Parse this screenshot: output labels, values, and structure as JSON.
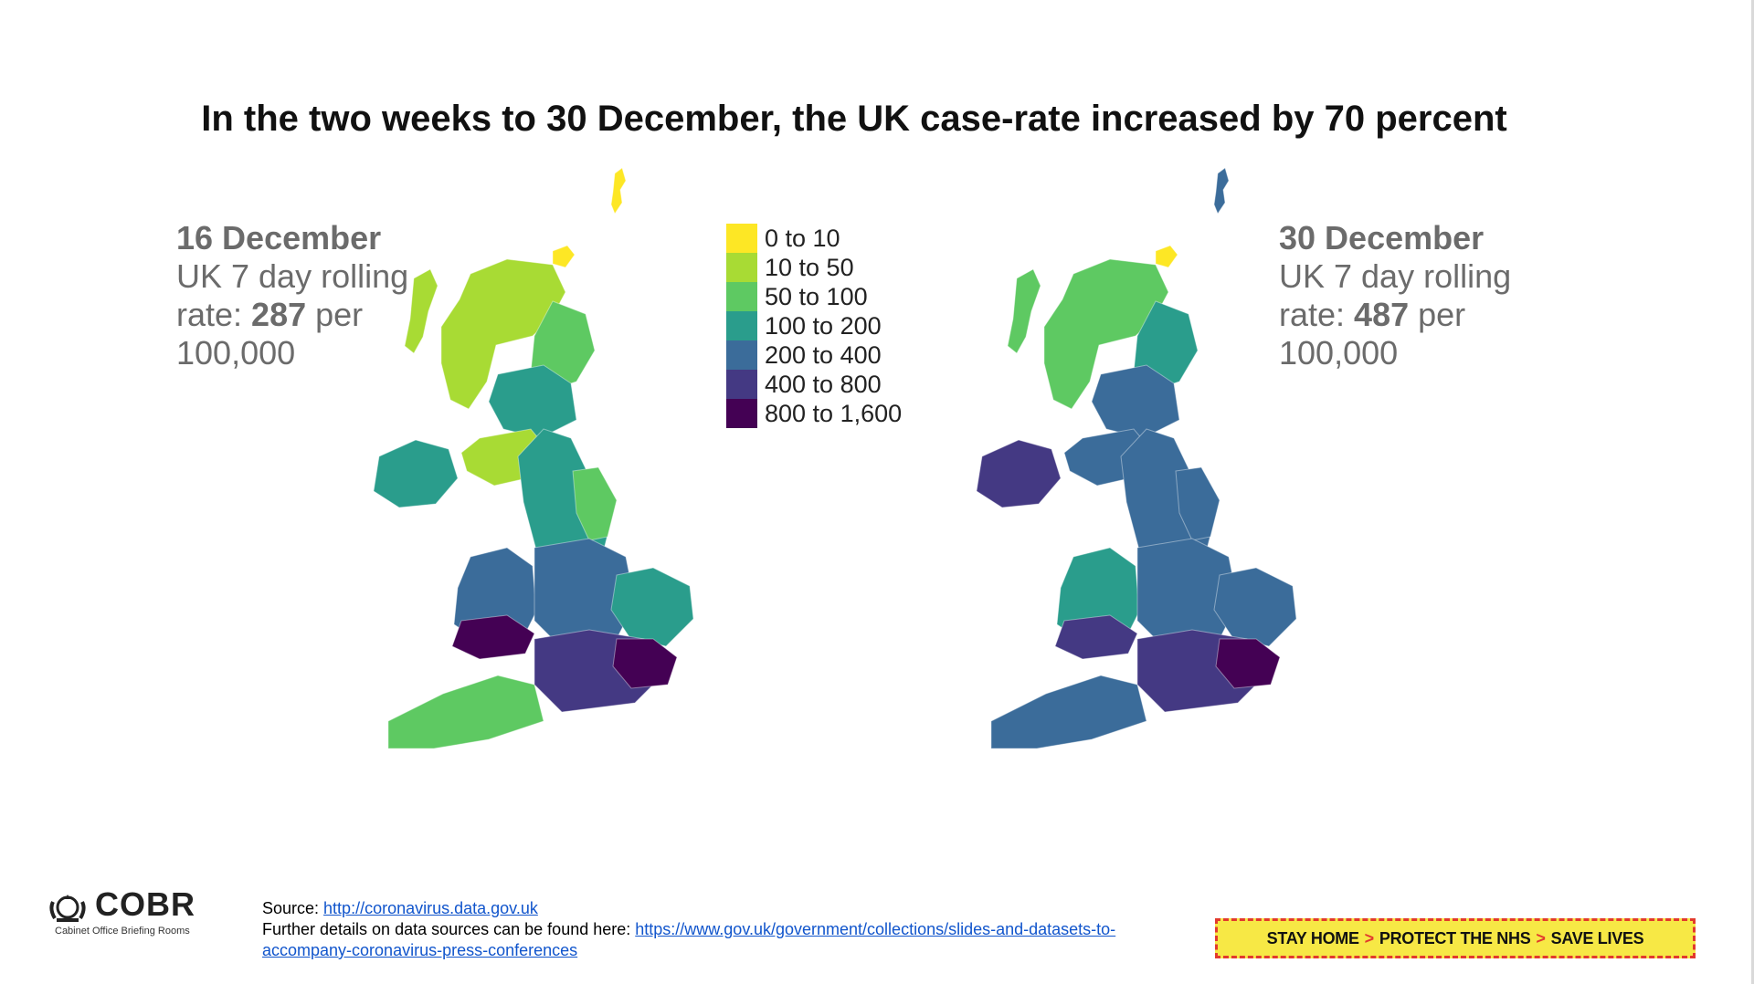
{
  "title": "In the two weeks to 30 December, the UK case-rate increased by 70 percent",
  "left_panel": {
    "date": "16 December",
    "line1": "UK 7 day rolling",
    "rate_prefix": "rate: ",
    "rate_value": "287",
    "rate_suffix": " per",
    "line3": "100,000"
  },
  "right_panel": {
    "date": "30 December",
    "line1": "UK 7 day rolling",
    "rate_prefix": "rate: ",
    "rate_value": "487",
    "rate_suffix": " per",
    "line3": "100,000"
  },
  "legend": [
    {
      "label": "0 to 10",
      "color": "#fde725"
    },
    {
      "label": "10 to 50",
      "color": "#a8db34"
    },
    {
      "label": "50 to 100",
      "color": "#5ec962"
    },
    {
      "label": "100 to 200",
      "color": "#2a9d8c"
    },
    {
      "label": "200 to 400",
      "color": "#3b6c9a"
    },
    {
      "label": "400 to 800",
      "color": "#443983"
    },
    {
      "label": "800 to 1,600",
      "color": "#440154"
    }
  ],
  "map_left": {
    "shetland": "#fde725",
    "orkney": "#fde725",
    "western_isles": "#a8db34",
    "scotland_north": "#a8db34",
    "scotland_east": "#5ec962",
    "scotland_central": "#2a9d8c",
    "scotland_south": "#a8db34",
    "northern_ireland": "#2a9d8c",
    "north_england": "#2a9d8c",
    "wales": "#3b6c9a",
    "midlands": "#3b6c9a",
    "east_anglia": "#2a9d8c",
    "south_west": "#5ec962",
    "south_east": "#443983",
    "london_kent": "#440154",
    "south_wales": "#440154",
    "yorkshire": "#5ec962"
  },
  "map_right": {
    "shetland": "#3b6c9a",
    "orkney": "#fde725",
    "western_isles": "#5ec962",
    "scotland_north": "#5ec962",
    "scotland_east": "#2a9d8c",
    "scotland_central": "#3b6c9a",
    "scotland_south": "#3b6c9a",
    "northern_ireland": "#443983",
    "north_england": "#3b6c9a",
    "wales": "#2a9d8c",
    "midlands": "#3b6c9a",
    "east_anglia": "#3b6c9a",
    "south_west": "#3b6c9a",
    "south_east": "#443983",
    "london_kent": "#440154",
    "south_wales": "#443983",
    "yorkshire": "#3b6c9a"
  },
  "logo": {
    "name": "COBR",
    "subtitle": "Cabinet Office Briefing Rooms"
  },
  "source": {
    "label": "Source: ",
    "link1": "http://coronavirus.data.gov.uk",
    "further": "Further details on data sources can be found here: ",
    "link2a": "https://www.gov.uk/government/collections/slides-and-datasets-to-",
    "link2b": "accompany-coronavirus-press-conferences"
  },
  "banner": {
    "part1": "STAY HOME",
    "part2": "PROTECT THE NHS",
    "part3": "SAVE LIVES",
    "sep": ">"
  }
}
